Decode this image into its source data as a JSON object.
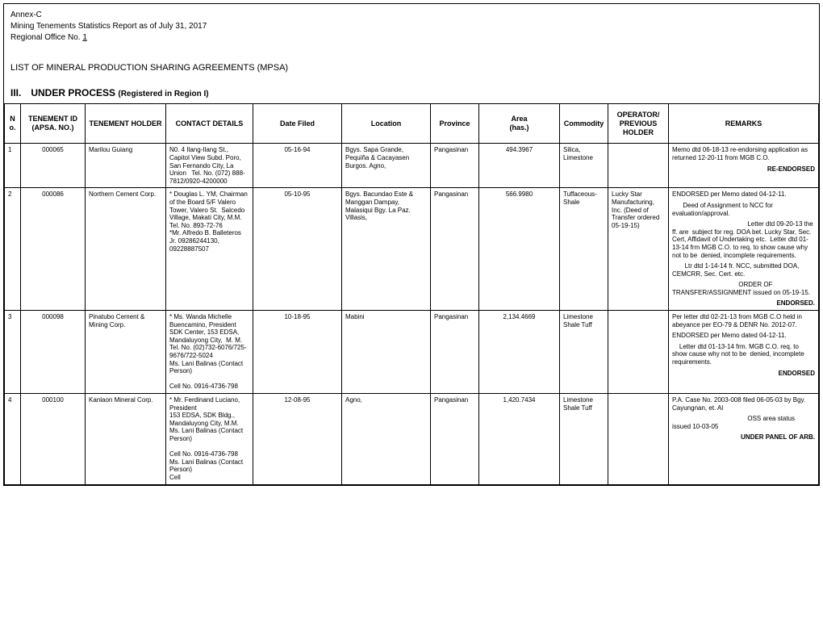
{
  "header": {
    "annex": "Annex-C",
    "report": "Mining Tenements Statistics Report as of July 31, 2017",
    "region_label": "Regional Office No.",
    "region_no": "1",
    "list_title": "LIST OF MINERAL PRODUCTION SHARING AGREEMENTS (MPSA)",
    "section_main": "III. UNDER PROCESS",
    "section_sub": "(Registered in Region I)"
  },
  "columns": {
    "no": "No.",
    "tenement_id_l1": "TENEMENT ID",
    "tenement_id_l2": "(APSA. NO.)",
    "holder": "TENEMENT HOLDER",
    "contact": "CONTACT DETAILS",
    "date": "Date Filed",
    "location": "Location",
    "province": "Province",
    "area_l1": "Area",
    "area_l2": "(has.)",
    "commodity": "Commodity",
    "operator_l1": "OPERATOR/",
    "operator_l2": "PREVIOUS",
    "operator_l3": "HOLDER",
    "remarks": "REMARKS"
  },
  "rows": [
    {
      "no": "1",
      "id": "000065",
      "holder": "Marilou Guiang",
      "contact": "N0. 4 Ilang-Ilang St., Capitol View Subd. Poro, San Fernando City, La Union   Tel. No. (072) 888-7812/0920-4200000",
      "date": "05-16-94",
      "location": "Bgys. Sapa Grande, Pequiña & Cacayasen Burgos. Agno,",
      "province": "Pangasinan",
      "area": "494.3967",
      "commodity": "Silica, Limestone",
      "operator": "",
      "remarks_p1": "Memo dtd 06-18-13 re-endorsing application as returned 12-20-11 from MGB C.O.",
      "remarks_tag": "RE-ENDORSED"
    },
    {
      "no": "2",
      "id": "000086",
      "holder": "Northern Cement Corp.",
      "contact": "* Douglas L. YM, Chairman of the Board 5/F Valero Tower, Valero St.  Salcedo Village, Makati City, M.M.                        Tel. No. 893-72-76                                            *Mr. Alfredo B. Balleteros Jr. 09286244130, 09228887507",
      "date": "05-10-95",
      "location": "Bgys. Bacundao  Este  & Manggan Dampay, Malasiqui                       Bgy. La Paz. Villasis,",
      "province": "Pangasinan",
      "area": "566.9980",
      "commodity": "Tuffaceous- Shale",
      "operator": "Lucky Star Manufacturing, Inc. (Deed of Transfer ordered 05-19-15)",
      "remarks_p1": "ENDORSED per Memo dated 04-12-11.",
      "remarks_p2": "      Deed of Assignment to NCC for evaluation/approval.",
      "remarks_p3": "                                          Letter dtd 09-20-13 the ff. are  subject for reg. DOA bet. Lucky Star, Sec. Cert, Affidavit of Undertaking etc.  Letter dtd 01-13-14 frm MGB C.O. to req. to show cause why not to be  denied, incomplete requirements.",
      "remarks_p4": "       Ltr dtd 1-14-14 fr. NCC, submitted DOA, CEMCRR, Sec. Cert. etc.",
      "remarks_p5": "                                     ORDER OF TRANSFER/ASSIGNMENT issued on 05-19-15.",
      "remarks_tag": "ENDORSED."
    },
    {
      "no": "3",
      "id": "000098",
      "holder": "Pinatubo Cement & Mining Corp.",
      "contact": "* Ms. Wanda Michelle Buencamino, President         SDK Center, 153 EDSA, Mandaluyong City,  M. M.    Tel. No. (02)732-6076/725-9676/722-5024                       Ms. Lani Balinas (Contact Person)\n\nCell No. 0916-4736-798",
      "date": "10-18-95",
      "location": "Mabini",
      "province": "Pangasinan",
      "area": "2,134.4669",
      "commodity": "Limestone    Shale           Tuff",
      "operator": "",
      "remarks_p1": "Per letter dtd 02-21-13 from MGB C.O held in abeyance per EO-79 & DENR No. 2012-07.",
      "remarks_p2": "ENDORSED per Memo dated 04-12-11.",
      "remarks_p3": "    Letter dtd 01-13-14 frm. MGB C.O. req. to show cause why not to be  denied, incomplete requirements.",
      "remarks_tag": "ENDORSED"
    },
    {
      "no": "4",
      "id": "000100",
      "holder": "Kanlaon Mineral Corp.",
      "contact": "* Mr. Ferdinand Luciano, President                                 153 EDSA, SDK Bldg., Mandaluyong City, M.M.                Ms. Lani Balinas (Contact Person)\n\nCell No. 0916-4736-798         Ms. Lani Balinas (Contact Person)                                               Cell",
      "date": "12-08-95",
      "location": "Agno,",
      "province": "Pangasinan",
      "area": "1,420.7434",
      "commodity": "Limestone Shale              Tuff",
      "operator": "",
      "remarks_p1": "P.A. Case No. 2003-008 filed 06-05-03 by Bgy. Cayungnan, et. Al",
      "remarks_p2": "                                          OSS area status issued 10-03-05",
      "remarks_tag": "UNDER PANEL OF ARB."
    }
  ]
}
